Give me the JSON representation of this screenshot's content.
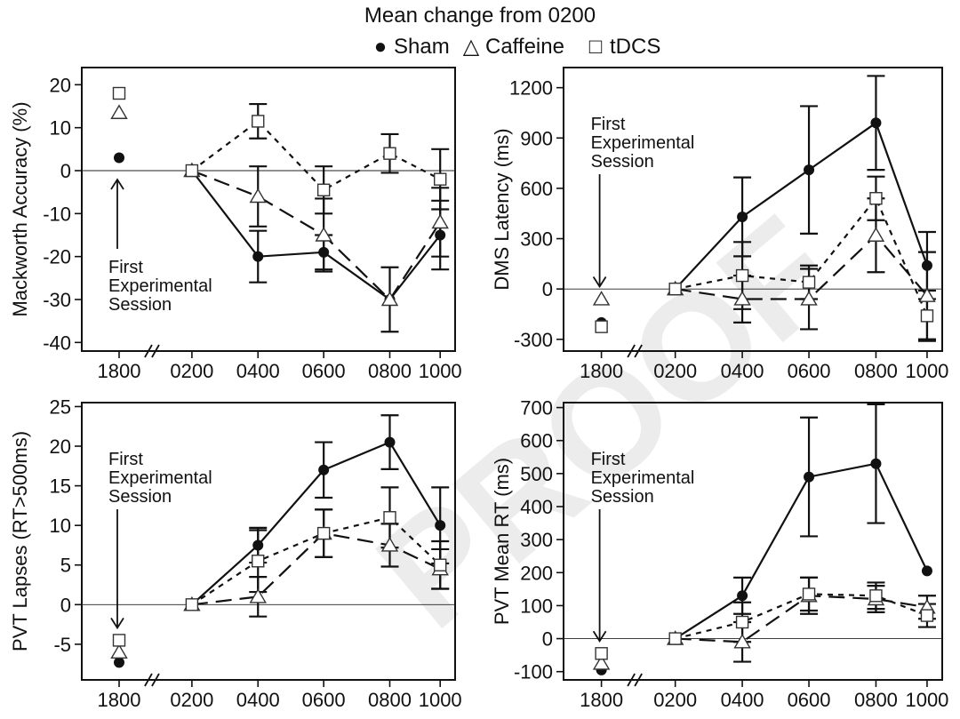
{
  "figure": {
    "title": "Mean change from 0200",
    "watermark": "PROOF",
    "annotation": [
      "First",
      "Experimental",
      "Session"
    ]
  },
  "legend": [
    {
      "name": "Sham",
      "marker": "filled-circle",
      "glyph": "●"
    },
    {
      "name": "Caffeine",
      "marker": "open-triangle",
      "glyph": "△"
    },
    {
      "name": "tDCS",
      "marker": "open-square",
      "glyph": "□"
    }
  ],
  "chart_data": [
    {
      "type": "line",
      "title": "Mackworth",
      "ylabel": "Mackworth Accuracy (%)",
      "xlabel": "",
      "x": [
        "1800",
        "0200",
        "0400",
        "0600",
        "0800",
        "1000"
      ],
      "ylim": [
        -42,
        24
      ],
      "yticks": [
        20,
        10,
        0,
        -10,
        -20,
        -30,
        -40
      ],
      "yticklabels": [
        "20",
        "10",
        "0",
        "-10",
        "-20",
        "-30",
        "-40"
      ],
      "annotation": "First Experimental Session",
      "series": [
        {
          "name": "Sham",
          "values": [
            3,
            0,
            -20,
            -19,
            -30,
            -15
          ],
          "err": [
            null,
            null,
            6,
            4,
            7.5,
            8
          ]
        },
        {
          "name": "Caffeine",
          "values": [
            13.5,
            0,
            -6,
            -15,
            -30,
            -12
          ],
          "err": [
            null,
            null,
            7,
            8.5,
            null,
            8
          ]
        },
        {
          "name": "tDCS",
          "values": [
            18,
            0,
            11.5,
            -4.5,
            4,
            -2
          ],
          "err": [
            null,
            null,
            4,
            5.5,
            4.5,
            7
          ]
        }
      ]
    },
    {
      "type": "line",
      "title": "DMS",
      "ylabel": "DMS Latency (ms)",
      "xlabel": "",
      "x": [
        "1800",
        "0200",
        "0400",
        "0600",
        "0800",
        "1000"
      ],
      "ylim": [
        -370,
        1320
      ],
      "yticks": [
        1200,
        900,
        600,
        300,
        0,
        -300
      ],
      "yticklabels": [
        "1200",
        "900",
        "600",
        "300",
        "0",
        "-300"
      ],
      "annotation": "First Experimental Session",
      "series": [
        {
          "name": "Sham",
          "values": [
            -200,
            0,
            430,
            710,
            990,
            140
          ],
          "err": [
            null,
            null,
            235,
            380,
            280,
            200
          ]
        },
        {
          "name": "Caffeine",
          "values": [
            -60,
            0,
            -60,
            -60,
            320,
            -40
          ],
          "err": [
            null,
            null,
            140,
            180,
            220,
            260
          ]
        },
        {
          "name": "tDCS",
          "values": [
            -225,
            0,
            80,
            40,
            540,
            -160
          ],
          "err": [
            null,
            null,
            200,
            100,
            130,
            150
          ]
        }
      ]
    },
    {
      "type": "line",
      "title": "PVT Lapses",
      "ylabel": "PVT Lapses (RT>500ms)",
      "xlabel": "",
      "x": [
        "1800",
        "0200",
        "0400",
        "0600",
        "0800",
        "1000"
      ],
      "ylim": [
        -9.5,
        25.5
      ],
      "yticks": [
        25,
        20,
        15,
        10,
        5,
        0,
        -5
      ],
      "yticklabels": [
        "25",
        "20",
        "15",
        "10",
        "5",
        "0",
        "-5"
      ],
      "annotation": "First Experimental Session",
      "series": [
        {
          "name": "Sham",
          "values": [
            -7.3,
            0,
            7.5,
            17,
            20.5,
            10
          ],
          "err": [
            null,
            null,
            2.2,
            3.5,
            3.4,
            4.8
          ]
        },
        {
          "name": "Caffeine",
          "values": [
            -6,
            0,
            1,
            9,
            7.5,
            4.5
          ],
          "err": [
            null,
            null,
            2.5,
            3,
            2.7,
            2.5
          ]
        },
        {
          "name": "tDCS",
          "values": [
            -4.5,
            0,
            5.5,
            9,
            11,
            5
          ],
          "err": [
            null,
            null,
            3.9,
            3,
            3.8,
            3
          ]
        }
      ]
    },
    {
      "type": "line",
      "title": "PVT Mean RT",
      "ylabel": "PVT Mean RT (ms)",
      "xlabel": "",
      "x": [
        "1800",
        "0200",
        "0400",
        "0600",
        "0800",
        "1000"
      ],
      "ylim": [
        -125,
        715
      ],
      "yticks": [
        700,
        600,
        500,
        400,
        300,
        200,
        100,
        0,
        -100
      ],
      "yticklabels": [
        "700",
        "600",
        "500",
        "400",
        "300",
        "200",
        "100",
        "0",
        "-100"
      ],
      "annotation": "First Experimental Session",
      "series": [
        {
          "name": "Sham",
          "values": [
            -95,
            0,
            130,
            490,
            530,
            205
          ],
          "err": [
            null,
            null,
            55,
            180,
            180,
            null
          ]
        },
        {
          "name": "Caffeine",
          "values": [
            -75,
            0,
            -10,
            130,
            120,
            95
          ],
          "err": [
            null,
            null,
            60,
            55,
            40,
            35
          ]
        },
        {
          "name": "tDCS",
          "values": [
            -45,
            0,
            50,
            135,
            130,
            70
          ],
          "err": [
            null,
            null,
            60,
            50,
            40,
            35
          ]
        }
      ]
    }
  ]
}
